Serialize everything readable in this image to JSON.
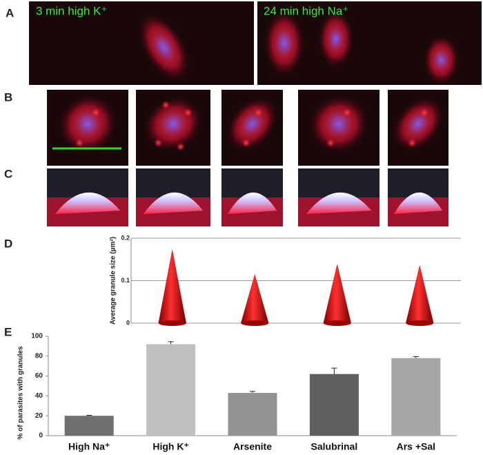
{
  "panels": {
    "A": {
      "label": "A",
      "captions": [
        "3 min high K⁺",
        "24 min high Na⁺"
      ]
    },
    "B": {
      "label": "B"
    },
    "C": {
      "label": "C"
    },
    "D": {
      "label": "D"
    },
    "E": {
      "label": "E"
    }
  },
  "chart_data": [
    {
      "type": "cone",
      "y_label": "Average granule size (μm²)",
      "values": [
        0.172,
        0.114,
        0.138,
        0.135
      ],
      "color": "#e01010",
      "ylim": [
        0,
        0.2
      ],
      "yticks": [
        0,
        0.1,
        0.2
      ],
      "grid": true
    },
    {
      "type": "bar",
      "y_label": "% of parasites with granules",
      "categories": [
        "High Na⁺",
        "High K⁺",
        "Arsenite",
        "Salubrinal",
        "Ars +Sal"
      ],
      "values": [
        20,
        92,
        43,
        62,
        78
      ],
      "errors": [
        0.5,
        2.5,
        1.5,
        6,
        1.5
      ],
      "colors": [
        "#6f6f6f",
        "#c0c0c0",
        "#939393",
        "#5f5f5f",
        "#a6a6a6"
      ],
      "ylim": [
        0,
        100
      ],
      "yticks": [
        0,
        20,
        40,
        60,
        80,
        100
      ]
    }
  ]
}
